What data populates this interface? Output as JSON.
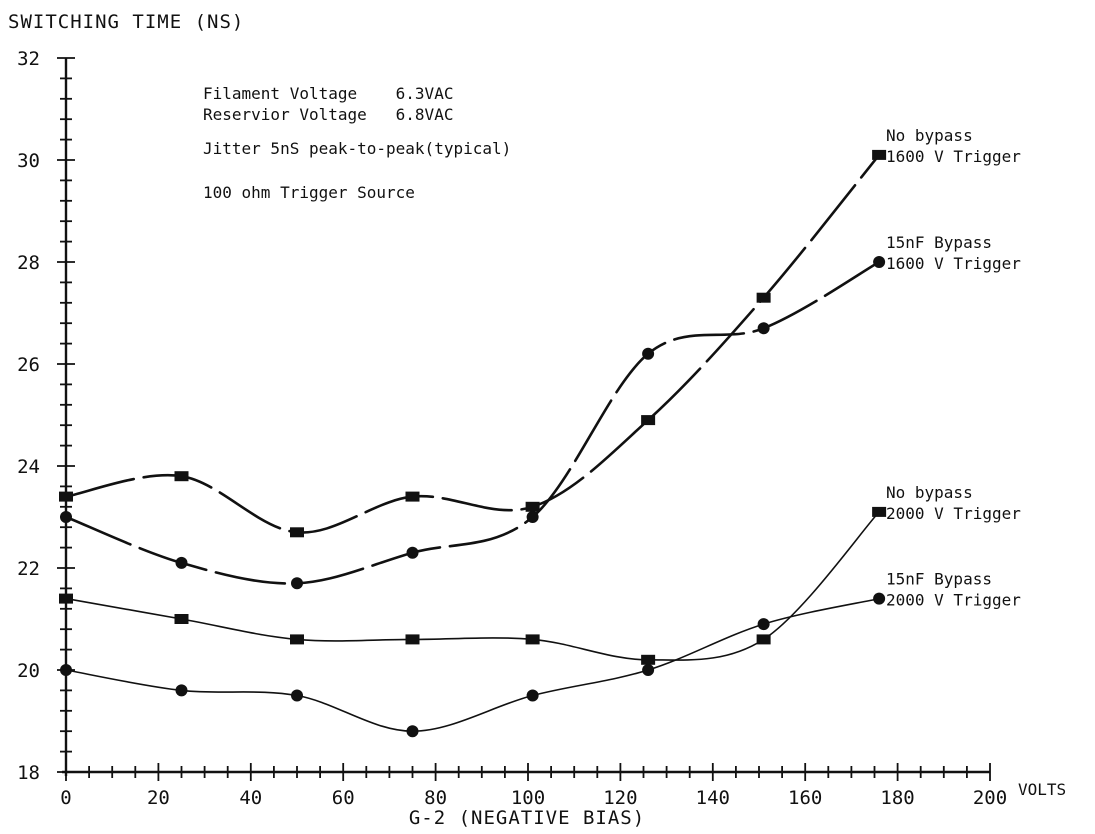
{
  "chart_data": {
    "type": "line",
    "ylabel": "SWITCHING TIME (NS)",
    "xlabel": "G-2 (NEGATIVE BIAS)",
    "x_unit": "VOLTS",
    "xlim": [
      0,
      200
    ],
    "ylim": [
      18,
      32
    ],
    "x_ticks": [
      0,
      20,
      40,
      60,
      80,
      100,
      120,
      140,
      160,
      180,
      200
    ],
    "y_ticks": [
      18,
      20,
      22,
      24,
      26,
      28,
      30,
      32
    ],
    "x_tick_labels": [
      "0",
      "20",
      "40",
      "60",
      "80",
      "100",
      "120",
      "140",
      "160",
      "180",
      "200"
    ],
    "y_tick_labels": [
      "18",
      "20",
      "22",
      "24",
      "26",
      "28",
      "30",
      "32"
    ],
    "notes": [
      "Filament Voltage    6.3VAC",
      "Reservior Voltage   6.8VAC",
      "Jitter 5nS peak-to-peak(typical)",
      "100 ohm Trigger Source"
    ],
    "series": [
      {
        "label_lines": [
          "No bypass",
          "1600 V Trigger"
        ],
        "marker": "square",
        "x": [
          0,
          25,
          50,
          75,
          101,
          126,
          151,
          176
        ],
        "y": [
          23.4,
          23.8,
          22.7,
          23.4,
          23.2,
          24.9,
          27.3,
          30.1
        ]
      },
      {
        "label_lines": [
          "15nF Bypass",
          "1600 V Trigger"
        ],
        "marker": "circle",
        "x": [
          0,
          25,
          50,
          75,
          101,
          126,
          151,
          176
        ],
        "y": [
          23.0,
          22.1,
          21.7,
          22.3,
          23.0,
          26.2,
          26.7,
          28.0
        ]
      },
      {
        "label_lines": [
          "No bypass",
          "2000 V Trigger"
        ],
        "marker": "square",
        "x": [
          0,
          25,
          50,
          75,
          101,
          126,
          151,
          176
        ],
        "y": [
          21.4,
          21.0,
          20.6,
          20.6,
          20.6,
          20.2,
          20.6,
          23.1
        ]
      },
      {
        "label_lines": [
          "15nF Bypass",
          "2000 V Trigger"
        ],
        "marker": "circle",
        "x": [
          0,
          25,
          50,
          75,
          101,
          126,
          151,
          176
        ],
        "y": [
          20.0,
          19.6,
          19.5,
          18.8,
          19.5,
          20.0,
          20.9,
          21.4
        ]
      }
    ]
  }
}
